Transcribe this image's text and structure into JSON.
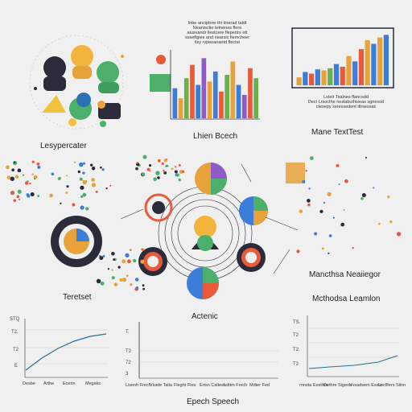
{
  "labels": {
    "people_cluster": "Lesypercater",
    "bar_chart_small": "Lhien Bcech",
    "right_bar_caption": "Mane TextTest",
    "middle_left": "Teretset",
    "middle_right": "Mancthsa Neaiiegor",
    "middle_center": "Actenic",
    "bottom_title": "Epech Speech",
    "right_small_net": "Mcthodsa Leamlon"
  },
  "text_blocks": {
    "top_center_lines": [
      "Inbe anciptore thr iinerad taldt",
      "Neanisctie tetnenes flere",
      "aiusvandr llestcere flepertrs ett",
      "ssseftgies and nearsic fiemcheer",
      "ilsy rvpeeanantd flectst"
    ],
    "right_caption_lines": [
      "Lstelr Tsalnes ffancsdd",
      "Dect Lrsocthe neslabuthiseas sgnesod",
      "ctesepy ssressedent itlrsessas"
    ]
  },
  "top_bar_chart": {
    "values": [
      0.45,
      0.3,
      0.6,
      0.8,
      0.5,
      0.9,
      0.55,
      0.7,
      0.4,
      0.65,
      0.85,
      0.5,
      0.35,
      0.75,
      0.6
    ],
    "colors": [
      "#3b7dd8",
      "#e8a23a",
      "#6ab04c",
      "#e85a3a",
      "#3b7dd8",
      "#8e5bc8",
      "#e8a23a",
      "#3b7dd8",
      "#e85a3a",
      "#6ab04c",
      "#e8a23a",
      "#3b7dd8",
      "#8e5bc8",
      "#e85a3a",
      "#6ab04c"
    ]
  },
  "right_bar_chart": {
    "values": [
      0.15,
      0.25,
      0.22,
      0.3,
      0.28,
      0.32,
      0.4,
      0.35,
      0.55,
      0.45,
      0.68,
      0.85,
      0.78,
      0.9,
      0.95
    ],
    "colors": [
      "#e8a23a",
      "#3b7dd8",
      "#e85a3a",
      "#3b7dd8",
      "#e8a23a",
      "#6ab04c",
      "#3b7dd8",
      "#e85a3a",
      "#e8a23a",
      "#3b7dd8",
      "#e85a3a",
      "#e8a23a",
      "#3b7dd8",
      "#e8a23a",
      "#3b7dd8"
    ]
  },
  "bottom_chart_left": {
    "yticks": [
      "STQ",
      "T2.",
      "T2",
      "E"
    ],
    "xticks": [
      "Desbe",
      "Arthe",
      "Ecerin",
      "Megsks"
    ],
    "line": [
      0.1,
      0.35,
      0.55,
      0.7,
      0.8,
      0.85
    ]
  },
  "bottom_chart_center": {
    "yticks": [
      "T.",
      "T2",
      "72",
      "3"
    ],
    "xticks": [
      "Lisenh\nFrech",
      "Viuide\nTalia",
      "Fleght\nFtes",
      "Ertsn\nCaltees",
      "Ldttm\nFrech",
      "Mdter\nFed"
    ]
  },
  "bottom_chart_right": {
    "yticks": [
      "TS.",
      "T2",
      "T2.",
      "T2"
    ],
    "xticks": [
      "rnnsta\nEosthrs",
      "Dethre\nSigeon",
      "Vvsadsem\nEssia",
      "Locllfers\nSilnn"
    ]
  },
  "colors": {
    "orange": "#e8a23a",
    "blue": "#3b7dd8",
    "green": "#4caf6a",
    "purple": "#8e5bc8",
    "dark": "#2b2b3a",
    "red": "#e85a3a"
  }
}
